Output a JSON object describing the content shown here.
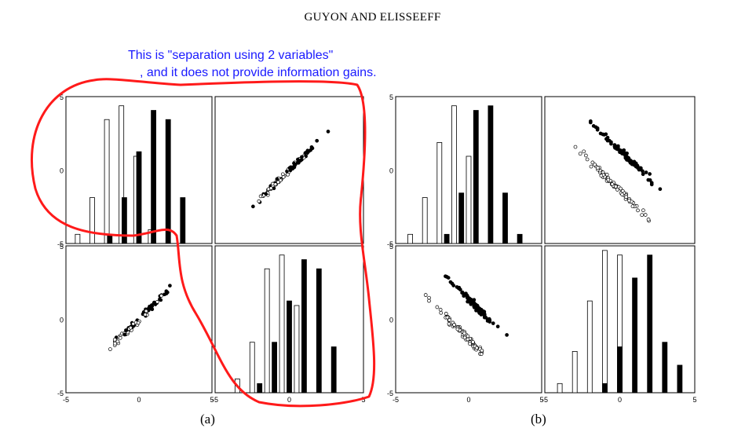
{
  "header": {
    "text": "GUYON AND ELISSEEFF"
  },
  "annotation": {
    "line1": "This is \"separation using 2 variables\"",
    "line2": ", and it does not provide information gains."
  },
  "panels": {
    "a": {
      "caption": "(a)",
      "y_ticks": [
        "5",
        "0",
        "-5"
      ],
      "x_ticks": [
        "-5",
        "0",
        "5"
      ]
    },
    "b": {
      "caption": "(b)",
      "y_ticks": [
        "5",
        "0",
        "-5"
      ],
      "x_ticks": [
        "-5",
        "0",
        "5"
      ]
    }
  },
  "chart_data": [
    {
      "panel": "a",
      "position": "top-left",
      "type": "bar",
      "series": [
        {
          "class": "open",
          "x": [
            -4.2,
            -3.2,
            -2.2,
            -1.2,
            -0.2,
            0.8
          ],
          "values": [
            0.1,
            0.5,
            1.35,
            1.5,
            0.95,
            0.15
          ]
        },
        {
          "class": "filled",
          "x": [
            -2.0,
            -1.0,
            0.0,
            1.0,
            2.0,
            3.0
          ],
          "values": [
            0.1,
            0.5,
            1.0,
            1.45,
            1.35,
            0.5
          ]
        }
      ]
    },
    {
      "panel": "a",
      "position": "top-right",
      "type": "scatter",
      "pattern": "single correlated cloud",
      "slope": 1.0
    },
    {
      "panel": "a",
      "position": "bottom-left",
      "type": "scatter",
      "pattern": "single correlated cloud",
      "slope": 1.0
    },
    {
      "panel": "a",
      "position": "bottom-right",
      "type": "bar",
      "series": [
        {
          "class": "open",
          "x": [
            -3.5,
            -2.5,
            -1.5,
            -0.5,
            0.5
          ],
          "values": [
            0.15,
            0.55,
            1.35,
            1.5,
            0.95
          ]
        },
        {
          "class": "filled",
          "x": [
            -2.0,
            -1.0,
            0.0,
            1.0,
            2.0,
            3.0
          ],
          "values": [
            0.1,
            0.55,
            1.0,
            1.45,
            1.35,
            0.5
          ]
        }
      ]
    },
    {
      "panel": "b",
      "position": "top-left",
      "type": "bar",
      "series": [
        {
          "class": "open",
          "x": [
            -4.0,
            -3.0,
            -2.0,
            -1.0,
            0.0
          ],
          "values": [
            0.1,
            0.5,
            1.1,
            1.5,
            0.95
          ]
        },
        {
          "class": "filled",
          "x": [
            -1.5,
            -0.5,
            0.5,
            1.5,
            2.5,
            3.5
          ],
          "values": [
            0.1,
            0.55,
            1.45,
            1.5,
            0.55,
            0.1
          ]
        }
      ]
    },
    {
      "panel": "b",
      "position": "top-right",
      "type": "scatter",
      "pattern": "two parallel anti-correlated clusters",
      "slope": -1.0
    },
    {
      "panel": "b",
      "position": "bottom-left",
      "type": "scatter",
      "pattern": "two parallel anti-correlated clusters",
      "slope": -1.0
    },
    {
      "panel": "b",
      "position": "bottom-right",
      "type": "bar",
      "series": [
        {
          "class": "open",
          "x": [
            -4.0,
            -3.0,
            -2.0,
            -1.0,
            0.0
          ],
          "values": [
            0.1,
            0.45,
            1.0,
            1.55,
            1.5
          ]
        },
        {
          "class": "filled",
          "x": [
            -1.0,
            0.0,
            1.0,
            2.0,
            3.0,
            4.0
          ],
          "values": [
            0.1,
            0.5,
            1.25,
            1.5,
            0.55,
            0.3
          ]
        }
      ]
    }
  ]
}
